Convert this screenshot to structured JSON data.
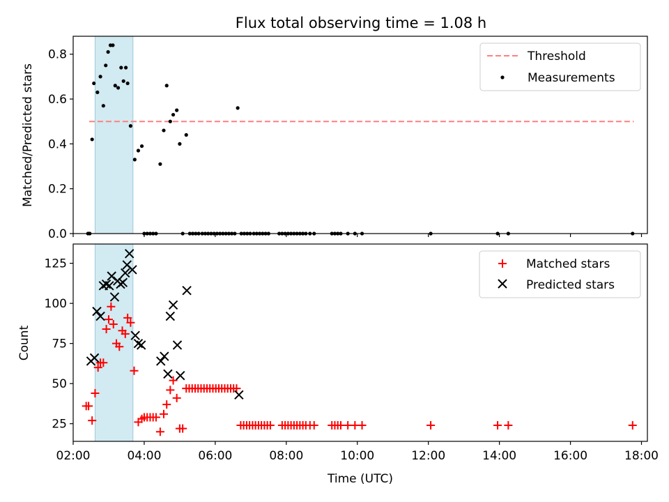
{
  "title": "Flux total observing time = 1.08 h",
  "xlabel": "Time (UTC)",
  "colors": {
    "threshold": "#ff7f7f",
    "measurement": "#000000",
    "matched": "#ff0000",
    "predicted": "#000000",
    "shade": "#add8e6"
  },
  "chart_data": [
    {
      "type": "scatter",
      "panel": "top",
      "ylabel": "Matched/Predicted stars",
      "xlim": [
        "02:00",
        "18:10"
      ],
      "ylim": [
        0,
        0.88
      ],
      "yticks": [
        0.0,
        0.2,
        0.4,
        0.6,
        0.8
      ],
      "ytick_labels": [
        "0.0",
        "0.2",
        "0.4",
        "0.6",
        "0.8"
      ],
      "shaded_span": [
        "02:37",
        "03:41"
      ],
      "legend_position": "upper right",
      "threshold": {
        "name": "Threshold",
        "y": 0.5,
        "x": [
          "02:27",
          "17:47"
        ]
      },
      "series": [
        {
          "name": "Measurements",
          "points": [
            [
              "02:25",
              0.0
            ],
            [
              "02:28",
              0.0
            ],
            [
              "02:32",
              0.42
            ],
            [
              "02:35",
              0.67
            ],
            [
              "02:41",
              0.63
            ],
            [
              "02:46",
              0.7
            ],
            [
              "02:51",
              0.57
            ],
            [
              "02:55",
              0.75
            ],
            [
              "02:59",
              0.81
            ],
            [
              "03:03",
              0.84
            ],
            [
              "03:07",
              0.84
            ],
            [
              "03:11",
              0.66
            ],
            [
              "03:16",
              0.65
            ],
            [
              "03:21",
              0.74
            ],
            [
              "03:25",
              0.68
            ],
            [
              "03:29",
              0.74
            ],
            [
              "03:32",
              0.67
            ],
            [
              "03:37",
              0.48
            ],
            [
              "03:44",
              0.33
            ],
            [
              "03:50",
              0.37
            ],
            [
              "03:56",
              0.39
            ],
            [
              "04:00",
              0.0
            ],
            [
              "04:05",
              0.0
            ],
            [
              "04:10",
              0.0
            ],
            [
              "04:15",
              0.0
            ],
            [
              "04:20",
              0.0
            ],
            [
              "04:27",
              0.31
            ],
            [
              "04:33",
              0.46
            ],
            [
              "04:38",
              0.66
            ],
            [
              "04:44",
              0.5
            ],
            [
              "04:49",
              0.53
            ],
            [
              "04:55",
              0.55
            ],
            [
              "05:00",
              0.4
            ],
            [
              "05:05",
              0.0
            ],
            [
              "05:11",
              0.44
            ],
            [
              "05:17",
              0.0
            ],
            [
              "05:22",
              0.0
            ],
            [
              "05:27",
              0.0
            ],
            [
              "05:32",
              0.0
            ],
            [
              "05:38",
              0.0
            ],
            [
              "05:43",
              0.0
            ],
            [
              "05:48",
              0.0
            ],
            [
              "05:53",
              0.0
            ],
            [
              "05:58",
              0.0
            ],
            [
              "06:03",
              0.0
            ],
            [
              "06:08",
              0.0
            ],
            [
              "06:13",
              0.0
            ],
            [
              "06:18",
              0.0
            ],
            [
              "06:23",
              0.0
            ],
            [
              "06:28",
              0.0
            ],
            [
              "06:33",
              0.0
            ],
            [
              "06:38",
              0.56
            ],
            [
              "06:44",
              0.0
            ],
            [
              "06:49",
              0.0
            ],
            [
              "06:54",
              0.0
            ],
            [
              "06:59",
              0.0
            ],
            [
              "07:05",
              0.0
            ],
            [
              "07:10",
              0.0
            ],
            [
              "07:15",
              0.0
            ],
            [
              "07:20",
              0.0
            ],
            [
              "07:25",
              0.0
            ],
            [
              "07:30",
              0.0
            ],
            [
              "07:48",
              0.0
            ],
            [
              "07:53",
              0.0
            ],
            [
              "07:58",
              0.0
            ],
            [
              "08:03",
              0.0
            ],
            [
              "08:08",
              0.0
            ],
            [
              "08:13",
              0.0
            ],
            [
              "08:18",
              0.0
            ],
            [
              "08:23",
              0.0
            ],
            [
              "08:28",
              0.0
            ],
            [
              "08:33",
              0.0
            ],
            [
              "08:40",
              0.0
            ],
            [
              "08:47",
              0.0
            ],
            [
              "09:17",
              0.0
            ],
            [
              "09:22",
              0.0
            ],
            [
              "09:27",
              0.0
            ],
            [
              "09:32",
              0.0
            ],
            [
              "09:44",
              0.0
            ],
            [
              "09:56",
              0.0
            ],
            [
              "10:08",
              0.0
            ],
            [
              "12:04",
              0.0
            ],
            [
              "13:57",
              0.0
            ],
            [
              "14:15",
              0.0
            ],
            [
              "17:45",
              0.0
            ]
          ]
        }
      ]
    },
    {
      "type": "scatter",
      "panel": "bottom",
      "ylabel": "Count",
      "xlabel": "Time (UTC)",
      "xlim": [
        "02:00",
        "18:10"
      ],
      "ylim": [
        14,
        137
      ],
      "yticks": [
        25,
        50,
        75,
        100,
        125
      ],
      "ytick_labels": [
        "25",
        "50",
        "75",
        "100",
        "125"
      ],
      "xticks": [
        "02:00",
        "04:00",
        "06:00",
        "08:00",
        "10:00",
        "12:00",
        "14:00",
        "16:00",
        "18:00"
      ],
      "xtick_labels": [
        "02:00",
        "04:00",
        "06:00",
        "08:00",
        "10:00",
        "12:00",
        "14:00",
        "16:00",
        "18:00"
      ],
      "shaded_span": [
        "02:37",
        "03:41"
      ],
      "legend_position": "upper right",
      "series": [
        {
          "name": "Matched stars",
          "marker": "plus",
          "points": [
            [
              "02:22",
              36
            ],
            [
              "02:26",
              36
            ],
            [
              "02:32",
              27
            ],
            [
              "02:37",
              44
            ],
            [
              "02:42",
              60
            ],
            [
              "02:46",
              63
            ],
            [
              "02:51",
              63
            ],
            [
              "02:56",
              84
            ],
            [
              "03:00",
              90
            ],
            [
              "03:04",
              98
            ],
            [
              "03:08",
              87
            ],
            [
              "03:13",
              75
            ],
            [
              "03:18",
              73
            ],
            [
              "03:23",
              83
            ],
            [
              "03:28",
              81
            ],
            [
              "03:32",
              91
            ],
            [
              "03:37",
              88
            ],
            [
              "03:43",
              58
            ],
            [
              "03:50",
              26
            ],
            [
              "03:56",
              28
            ],
            [
              "04:00",
              29
            ],
            [
              "04:05",
              29
            ],
            [
              "04:10",
              29
            ],
            [
              "04:15",
              29
            ],
            [
              "04:20",
              29
            ],
            [
              "04:27",
              20
            ],
            [
              "04:33",
              31
            ],
            [
              "04:38",
              37
            ],
            [
              "04:44",
              46
            ],
            [
              "04:49",
              52
            ],
            [
              "04:55",
              41
            ],
            [
              "05:00",
              22
            ],
            [
              "05:05",
              22
            ],
            [
              "05:11",
              47
            ],
            [
              "05:16",
              47
            ],
            [
              "05:21",
              47
            ],
            [
              "05:26",
              47
            ],
            [
              "05:31",
              47
            ],
            [
              "05:36",
              47
            ],
            [
              "05:41",
              47
            ],
            [
              "05:46",
              47
            ],
            [
              "05:51",
              47
            ],
            [
              "05:56",
              47
            ],
            [
              "06:01",
              47
            ],
            [
              "06:06",
              47
            ],
            [
              "06:11",
              47
            ],
            [
              "06:16",
              47
            ],
            [
              "06:21",
              47
            ],
            [
              "06:26",
              47
            ],
            [
              "06:31",
              47
            ],
            [
              "06:36",
              47
            ],
            [
              "06:43",
              24
            ],
            [
              "06:48",
              24
            ],
            [
              "06:53",
              24
            ],
            [
              "06:58",
              24
            ],
            [
              "07:03",
              24
            ],
            [
              "07:08",
              24
            ],
            [
              "07:13",
              24
            ],
            [
              "07:18",
              24
            ],
            [
              "07:23",
              24
            ],
            [
              "07:28",
              24
            ],
            [
              "07:33",
              24
            ],
            [
              "07:53",
              24
            ],
            [
              "07:58",
              24
            ],
            [
              "08:03",
              24
            ],
            [
              "08:08",
              24
            ],
            [
              "08:13",
              24
            ],
            [
              "08:18",
              24
            ],
            [
              "08:23",
              24
            ],
            [
              "08:28",
              24
            ],
            [
              "08:33",
              24
            ],
            [
              "08:40",
              24
            ],
            [
              "08:47",
              24
            ],
            [
              "09:17",
              24
            ],
            [
              "09:22",
              24
            ],
            [
              "09:27",
              24
            ],
            [
              "09:32",
              24
            ],
            [
              "09:44",
              24
            ],
            [
              "09:56",
              24
            ],
            [
              "10:08",
              24
            ],
            [
              "12:04",
              24
            ],
            [
              "13:57",
              24
            ],
            [
              "14:15",
              24
            ],
            [
              "17:45",
              24
            ]
          ]
        },
        {
          "name": "Predicted stars",
          "marker": "x",
          "points": [
            [
              "02:30",
              64
            ],
            [
              "02:36",
              66
            ],
            [
              "02:40",
              95
            ],
            [
              "02:46",
              92
            ],
            [
              "02:51",
              111
            ],
            [
              "02:56",
              112
            ],
            [
              "03:01",
              111
            ],
            [
              "03:05",
              117
            ],
            [
              "03:10",
              104
            ],
            [
              "03:15",
              114
            ],
            [
              "03:20",
              112
            ],
            [
              "03:24",
              113
            ],
            [
              "03:28",
              119
            ],
            [
              "03:31",
              124
            ],
            [
              "03:35",
              131
            ],
            [
              "03:40",
              121
            ],
            [
              "03:45",
              80
            ],
            [
              "03:50",
              75
            ],
            [
              "03:55",
              74
            ],
            [
              "04:28",
              64
            ],
            [
              "04:34",
              67
            ],
            [
              "04:40",
              56
            ],
            [
              "04:44",
              92
            ],
            [
              "04:49",
              99
            ],
            [
              "04:56",
              74
            ],
            [
              "05:01",
              55
            ],
            [
              "05:12",
              108
            ],
            [
              "06:40",
              43
            ]
          ]
        }
      ]
    }
  ],
  "legend": {
    "top": [
      {
        "label": "Threshold"
      },
      {
        "label": "Measurements"
      }
    ],
    "bottom": [
      {
        "label": "Matched stars"
      },
      {
        "label": "Predicted stars"
      }
    ]
  }
}
